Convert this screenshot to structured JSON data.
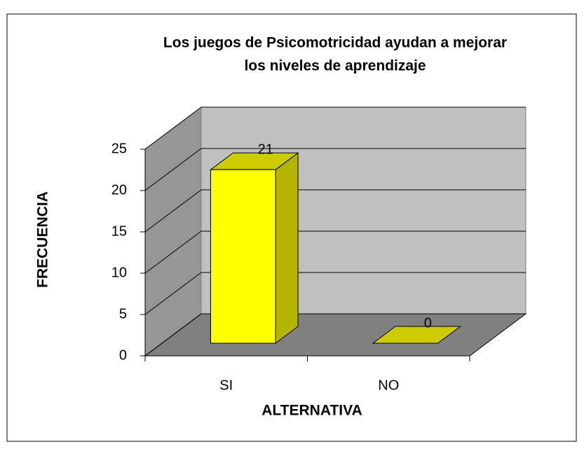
{
  "chart_data": {
    "type": "bar3d",
    "title": [
      "Los juegos de Psicomotricidad ayudan a mejorar",
      "los niveles de aprendizaje"
    ],
    "x_label": "ALTERNATIVA",
    "y_label": "FRECUENCIA",
    "categories": [
      "SI",
      "NO"
    ],
    "values": [
      21,
      0
    ],
    "color": "#ffff00",
    "ylim": [
      0,
      25
    ],
    "yticks": [
      0,
      5,
      10,
      15,
      20,
      25
    ],
    "grid": true
  }
}
